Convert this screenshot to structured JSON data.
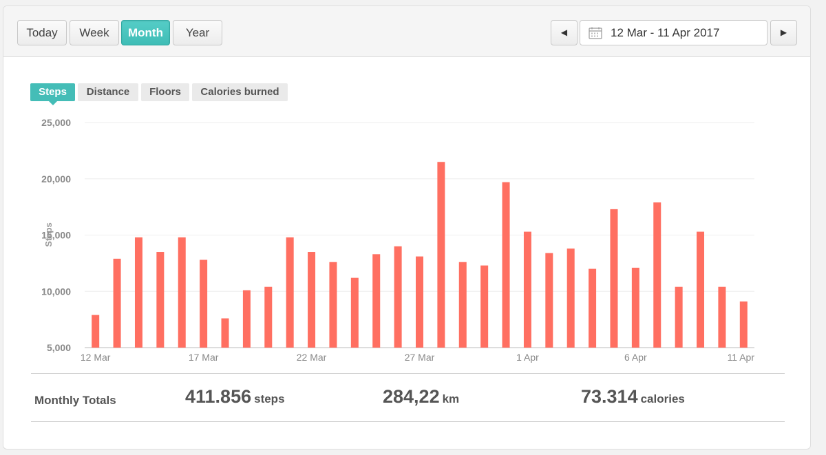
{
  "period_buttons": [
    "Today",
    "Week",
    "Month",
    "Year"
  ],
  "active_period": "Month",
  "date_range": "12 Mar - 11 Apr 2017",
  "metric_tabs": [
    "Steps",
    "Distance",
    "Floors",
    "Calories burned"
  ],
  "active_metric": "Steps",
  "chart_data": {
    "type": "bar",
    "ylabel": "Steps",
    "ylim": [
      5000,
      25000
    ],
    "yticks": [
      "25,000",
      "20,000",
      "15,000",
      "10,000",
      "5,000"
    ],
    "xtick_labels": [
      "12 Mar",
      "17 Mar",
      "22 Mar",
      "27 Mar",
      "1 Apr",
      "6 Apr",
      "11 Apr"
    ],
    "categories": [
      "12 Mar",
      "13 Mar",
      "14 Mar",
      "15 Mar",
      "16 Mar",
      "17 Mar",
      "18 Mar",
      "19 Mar",
      "20 Mar",
      "21 Mar",
      "22 Mar",
      "23 Mar",
      "24 Mar",
      "25 Mar",
      "26 Mar",
      "27 Mar",
      "28 Mar",
      "29 Mar",
      "30 Mar",
      "31 Mar",
      "1 Apr",
      "2 Apr",
      "3 Apr",
      "4 Apr",
      "5 Apr",
      "6 Apr",
      "7 Apr",
      "8 Apr",
      "9 Apr",
      "10 Apr",
      "11 Apr"
    ],
    "values": [
      7900,
      12900,
      14800,
      13500,
      14800,
      12800,
      7600,
      10100,
      10400,
      14800,
      13500,
      12600,
      11200,
      13300,
      14000,
      13100,
      21500,
      12600,
      12300,
      19700,
      15300,
      13400,
      13800,
      12000,
      17300,
      12100,
      17900,
      10400,
      15300,
      10400,
      9100
    ],
    "bar_color": "#ff6f61",
    "grid": true,
    "legend": "none"
  },
  "totals": {
    "label": "Monthly Totals",
    "steps_value": "411.856",
    "steps_unit": "steps",
    "distance_value": "284,22",
    "distance_unit": "km",
    "calories_value": "73.314",
    "calories_unit": "calories"
  },
  "colors": {
    "accent": "#44bdb7",
    "bar": "#ff6f61"
  }
}
